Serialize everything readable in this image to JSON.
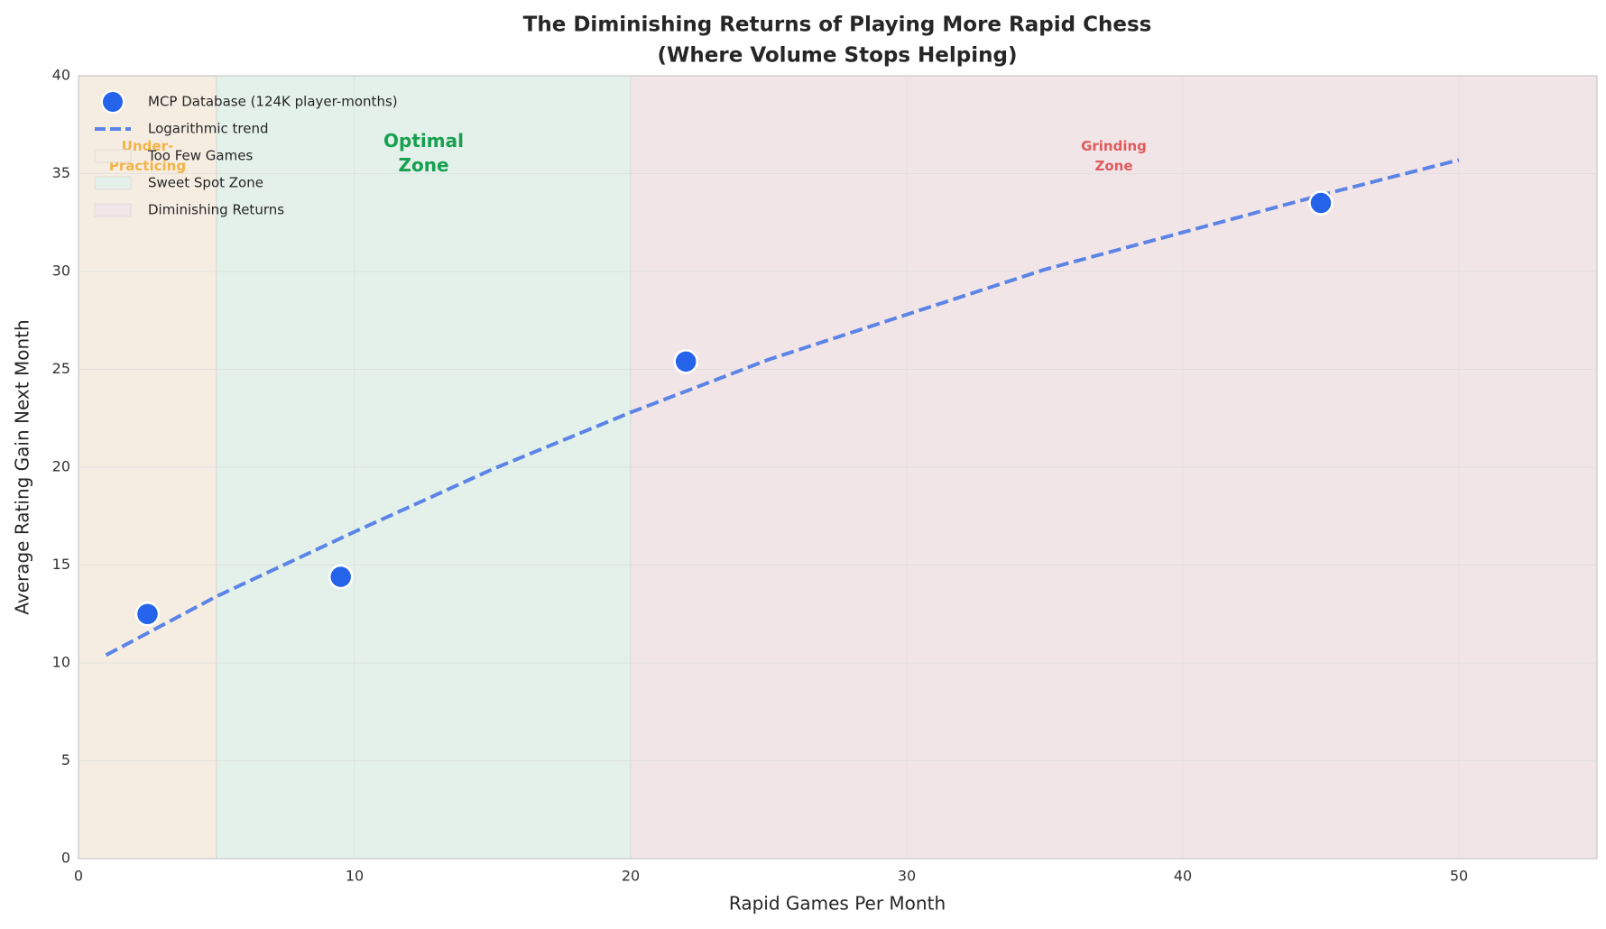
{
  "chart_data": {
    "type": "scatter",
    "title": "The Diminishing Returns of Playing More Rapid Chess",
    "subtitle": "(Where Volume Stops Helping)",
    "x_label": "Rapid Games Per Month",
    "y_label": "Average Rating Gain Next Month",
    "xlim": [
      0,
      55
    ],
    "xticks": [
      0,
      10,
      20,
      30,
      40,
      50
    ],
    "ylim": [
      0,
      40
    ],
    "yticks": [
      0,
      5,
      10,
      15,
      20,
      25,
      30,
      35,
      40
    ],
    "grid": true,
    "legend": "upper left",
    "spans": [
      {
        "name": "Too Few Games",
        "from": 0,
        "to": 5,
        "color": "#f6ede2",
        "label_color": "#f2b347",
        "label": [
          "Under-",
          "Practicing"
        ]
      },
      {
        "name": "Sweet Spot Zone",
        "from": 5,
        "to": 20,
        "color": "#e3f1ea",
        "label_color": "#18a050",
        "label": [
          "Optimal",
          "Zone"
        ]
      },
      {
        "name": "Diminishing Returns",
        "from": 20,
        "to": 55,
        "color": "#f2e5e7",
        "label_color": "#df5b5e",
        "label": [
          "Grinding",
          "Zone"
        ]
      }
    ],
    "series": [
      {
        "name": "MCP Database (124K player-months)",
        "type": "scatter",
        "color": "#2563eb",
        "x": [
          2.5,
          9.5,
          22,
          45
        ],
        "values": [
          12.5,
          14.4,
          25.4,
          33.5
        ]
      },
      {
        "name": "Logarithmic trend",
        "type": "line",
        "color": "#5b84e6",
        "dashed": true,
        "x": [
          1,
          5,
          10,
          15,
          20,
          25,
          30,
          35,
          40,
          45,
          50
        ],
        "values": [
          10.4,
          13.4,
          16.7,
          19.9,
          22.8,
          25.5,
          27.8,
          30.1,
          32.0,
          33.9,
          35.7
        ]
      }
    ]
  }
}
